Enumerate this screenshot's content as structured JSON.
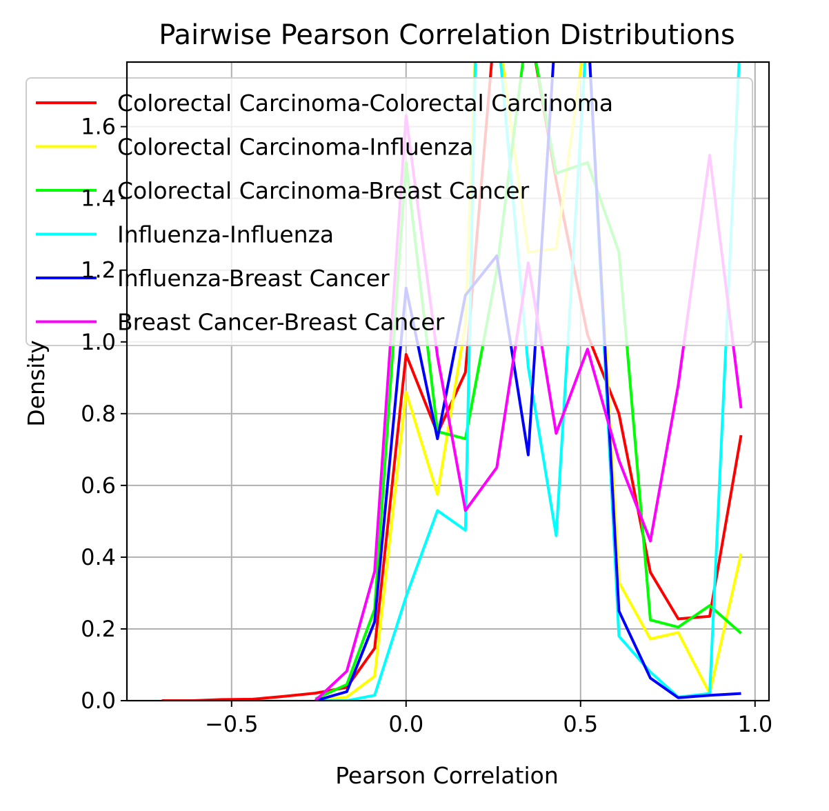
{
  "chart_data": {
    "type": "line",
    "title": "Pairwise Pearson Correlation Distributions",
    "xlabel": "Pearson Correlation",
    "ylabel": "Density",
    "xlim": [
      -0.8,
      1.04
    ],
    "ylim": [
      0,
      1.78
    ],
    "xticks": [
      -0.5,
      0.0,
      0.5,
      1.0
    ],
    "xtick_labels": [
      "−0.5",
      "0.0",
      "0.5",
      "1.0"
    ],
    "yticks": [
      0.0,
      0.2,
      0.4,
      0.6,
      0.8,
      1.0,
      1.2,
      1.4,
      1.6
    ],
    "ytick_labels": [
      "0.0",
      "0.2",
      "0.4",
      "0.6",
      "0.8",
      "1.0",
      "1.2",
      "1.4",
      "1.6"
    ],
    "grid": true,
    "legend_position": "top-left",
    "series": [
      {
        "name": "Colorectal Carcinoma-Colorectal Carcinoma",
        "color": "#ff0000",
        "x": [
          -0.7,
          -0.61,
          -0.53,
          -0.44,
          -0.35,
          -0.26,
          -0.17,
          -0.09,
          0.0,
          0.09,
          0.17,
          0.26,
          0.35,
          0.43,
          0.52,
          0.61,
          0.7,
          0.78,
          0.87,
          0.96
        ],
        "y": [
          0.0,
          0.0,
          0.003,
          0.004,
          0.012,
          0.021,
          0.037,
          0.146,
          0.965,
          0.745,
          0.915,
          1.95,
          1.9,
          1.45,
          1.02,
          0.8,
          0.358,
          0.228,
          0.235,
          0.74
        ]
      },
      {
        "name": "Colorectal Carcinoma-Influenza",
        "color": "#ffff00",
        "x": [
          -0.26,
          -0.17,
          -0.09,
          0.0,
          0.09,
          0.17,
          0.2,
          0.26,
          0.35,
          0.43,
          0.52,
          0.61,
          0.7,
          0.78,
          0.87,
          0.96
        ],
        "y": [
          0.0,
          0.01,
          0.068,
          0.86,
          0.575,
          1.05,
          1.85,
          1.9,
          1.25,
          1.26,
          1.9,
          0.33,
          0.172,
          0.19,
          0.02,
          0.41
        ]
      },
      {
        "name": "Colorectal Carcinoma-Breast Cancer",
        "color": "#00ff00",
        "x": [
          -0.26,
          -0.17,
          -0.09,
          0.0,
          0.09,
          0.17,
          0.26,
          0.35,
          0.43,
          0.52,
          0.61,
          0.7,
          0.78,
          0.87,
          0.96
        ],
        "y": [
          0.005,
          0.045,
          0.255,
          1.5,
          0.75,
          0.73,
          1.2,
          1.9,
          1.47,
          1.5,
          1.25,
          0.225,
          0.205,
          0.265,
          0.188
        ]
      },
      {
        "name": "Influenza-Influenza",
        "color": "#00ffff",
        "x": [
          -0.26,
          -0.17,
          -0.09,
          0.0,
          0.09,
          0.17,
          0.2,
          0.26,
          0.35,
          0.43,
          0.52,
          0.61,
          0.7,
          0.78,
          0.87,
          0.96
        ],
        "y": [
          0.0,
          0.0,
          0.015,
          0.29,
          0.53,
          0.475,
          1.85,
          1.9,
          0.93,
          0.46,
          1.9,
          0.18,
          0.08,
          0.01,
          0.02,
          1.9
        ]
      },
      {
        "name": "Influenza-Breast Cancer",
        "color": "#0000ff",
        "x": [
          -0.26,
          -0.17,
          -0.09,
          0.0,
          0.09,
          0.17,
          0.26,
          0.35,
          0.43,
          0.52,
          0.61,
          0.7,
          0.78,
          0.87,
          0.96
        ],
        "y": [
          0.0,
          0.025,
          0.22,
          1.15,
          0.73,
          1.13,
          1.24,
          0.685,
          1.9,
          1.9,
          0.25,
          0.063,
          0.008,
          0.015,
          0.02
        ]
      },
      {
        "name": "Breast Cancer-Breast Cancer",
        "color": "#ff00ff",
        "x": [
          -0.26,
          -0.17,
          -0.09,
          0.0,
          0.09,
          0.17,
          0.26,
          0.35,
          0.43,
          0.52,
          0.61,
          0.7,
          0.78,
          0.87,
          0.96
        ],
        "y": [
          0.0,
          0.082,
          0.36,
          1.63,
          0.96,
          0.53,
          0.65,
          1.22,
          0.745,
          0.98,
          0.67,
          0.445,
          0.88,
          1.52,
          0.815
        ]
      }
    ]
  }
}
